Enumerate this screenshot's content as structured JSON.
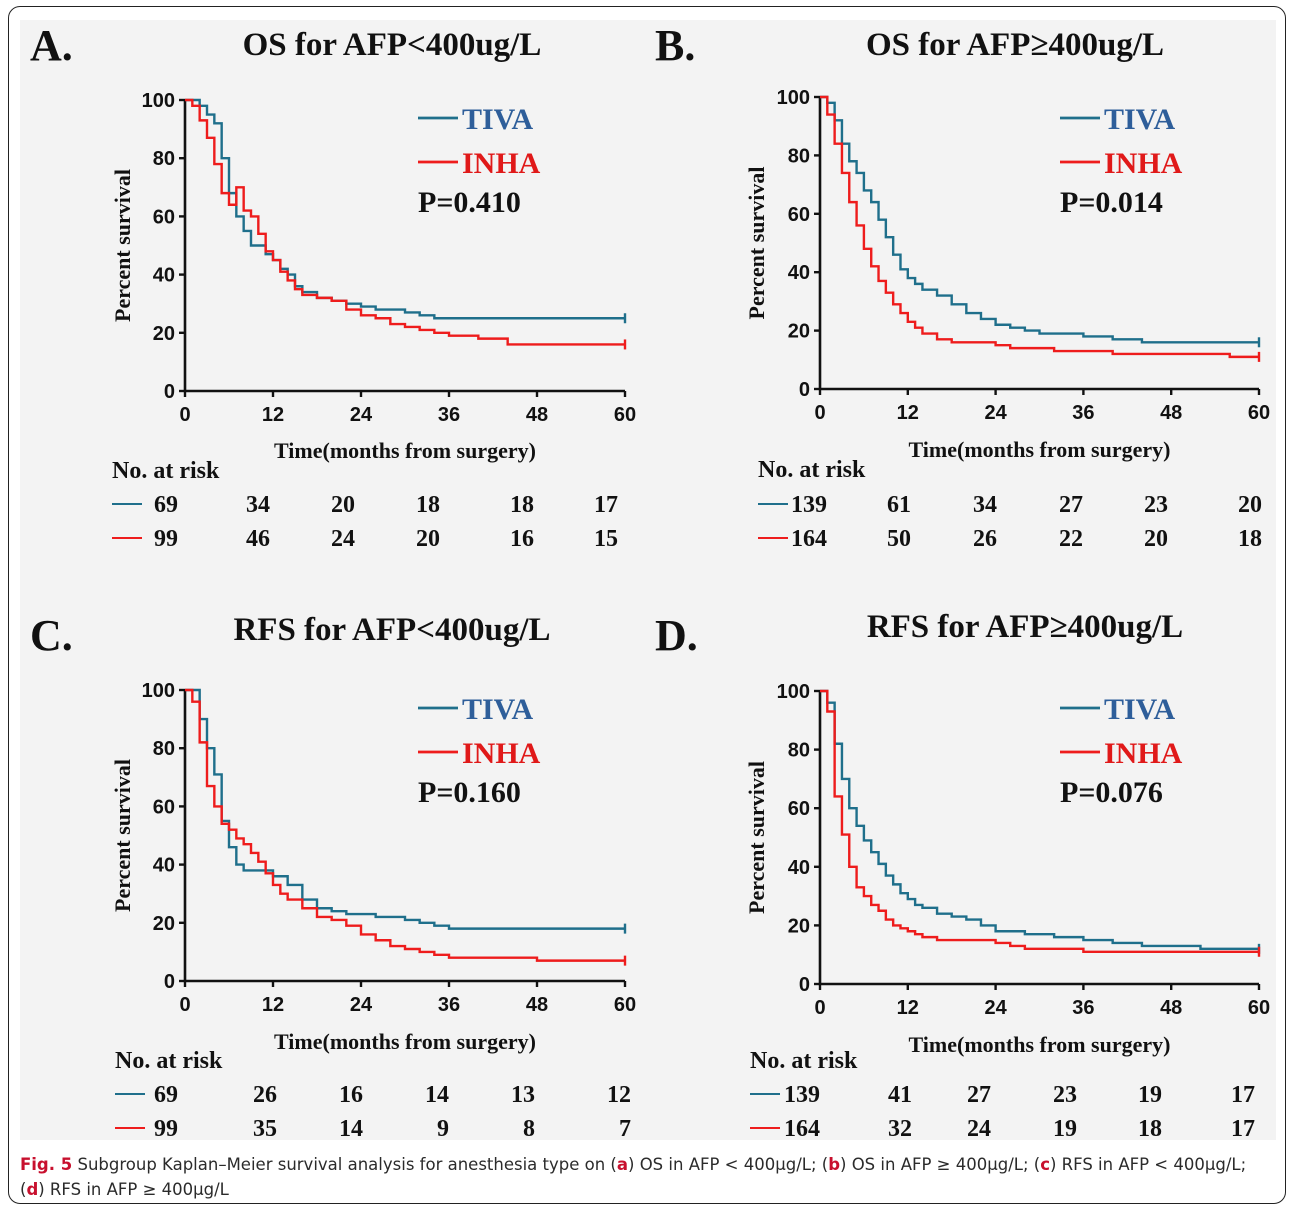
{
  "caption": {
    "label": "Fig. 5",
    "text": " Subgroup Kaplan–Meier survival analysis for anesthesia type on (",
    "parts": [
      {
        "ref": "a",
        "text": ") OS in AFP < 400μg/L; ("
      },
      {
        "ref": "b",
        "text": ") OS in AFP ≥ 400μg/L; ("
      },
      {
        "ref": "c",
        "text": ") RFS in AFP < 400μg/L;"
      },
      {
        "ref": "d",
        "text": ") RFS in AFP ≥ 400μg/L"
      }
    ]
  },
  "colors": {
    "TIVA": "#1f6f8b",
    "INHA": "#ee1c1c",
    "TIVA_text": "#2e5e9a",
    "INHA_text": "#e01919"
  },
  "chart_data": [
    {
      "panel": "A.",
      "type": "line",
      "step": true,
      "title": "OS for AFP<400ug/L",
      "xlabel": "Time(months from surgery)",
      "ylabel": "Percent survival",
      "xlim": [
        0,
        60
      ],
      "ylim": [
        0,
        100
      ],
      "xticks": [
        0,
        12,
        24,
        36,
        48,
        60
      ],
      "yticks": [
        0,
        20,
        40,
        60,
        80,
        100
      ],
      "legend": [
        "TIVA",
        "INHA"
      ],
      "p_value": "P=0.410",
      "series": [
        {
          "name": "TIVA",
          "x": [
            0,
            2,
            3,
            4,
            5,
            6,
            7,
            8,
            9,
            10,
            11,
            12,
            13,
            14,
            15,
            16,
            18,
            20,
            22,
            24,
            26,
            28,
            30,
            32,
            34,
            36,
            40,
            44,
            48,
            52,
            56,
            60
          ],
          "y": [
            100,
            98,
            95,
            92,
            80,
            68,
            60,
            55,
            50,
            50,
            47,
            45,
            42,
            40,
            36,
            34,
            32,
            31,
            30,
            29,
            28,
            28,
            27,
            26,
            25,
            25,
            25,
            25,
            25,
            25,
            25,
            25
          ]
        },
        {
          "name": "INHA",
          "x": [
            0,
            1,
            2,
            3,
            4,
            5,
            6,
            7,
            8,
            9,
            10,
            11,
            12,
            13,
            14,
            15,
            16,
            18,
            20,
            22,
            24,
            26,
            28,
            30,
            32,
            34,
            36,
            40,
            44,
            48,
            52,
            56,
            60
          ],
          "y": [
            100,
            98,
            93,
            87,
            78,
            68,
            64,
            70,
            62,
            60,
            54,
            48,
            45,
            41,
            38,
            35,
            33,
            32,
            31,
            28,
            26,
            25,
            23,
            22,
            21,
            20,
            19,
            18,
            16,
            16,
            16,
            16,
            16
          ]
        }
      ],
      "risk_table": {
        "title": "No. at risk",
        "TIVA": [
          69,
          34,
          20,
          18,
          18,
          17
        ],
        "INHA": [
          99,
          46,
          24,
          20,
          16,
          15
        ]
      }
    },
    {
      "panel": "B.",
      "type": "line",
      "step": true,
      "title": "OS for AFP≥400ug/L",
      "xlabel": "Time(months from surgery)",
      "ylabel": "Percent survival",
      "xlim": [
        0,
        60
      ],
      "ylim": [
        0,
        100
      ],
      "xticks": [
        0,
        12,
        24,
        36,
        48,
        60
      ],
      "yticks": [
        0,
        20,
        40,
        60,
        80,
        100
      ],
      "legend": [
        "TIVA",
        "INHA"
      ],
      "p_value": "P=0.014",
      "series": [
        {
          "name": "TIVA",
          "x": [
            0,
            1,
            2,
            3,
            4,
            5,
            6,
            7,
            8,
            9,
            10,
            11,
            12,
            13,
            14,
            16,
            18,
            20,
            22,
            24,
            26,
            28,
            30,
            32,
            36,
            40,
            44,
            48,
            52,
            56,
            60
          ],
          "y": [
            100,
            98,
            92,
            84,
            78,
            74,
            68,
            64,
            58,
            52,
            46,
            41,
            38,
            36,
            34,
            32,
            29,
            26,
            24,
            22,
            21,
            20,
            19,
            19,
            18,
            17,
            16,
            16,
            16,
            16,
            16
          ]
        },
        {
          "name": "INHA",
          "x": [
            0,
            1,
            2,
            3,
            4,
            5,
            6,
            7,
            8,
            9,
            10,
            11,
            12,
            13,
            14,
            16,
            18,
            20,
            22,
            24,
            26,
            28,
            30,
            32,
            36,
            40,
            44,
            48,
            52,
            56,
            60
          ],
          "y": [
            100,
            94,
            84,
            74,
            64,
            56,
            48,
            42,
            37,
            33,
            29,
            26,
            23,
            21,
            19,
            17,
            16,
            16,
            16,
            15,
            14,
            14,
            14,
            13,
            13,
            12,
            12,
            12,
            12,
            11,
            11
          ]
        }
      ],
      "risk_table": {
        "title": "No. at risk",
        "TIVA": [
          139,
          61,
          34,
          27,
          23,
          20
        ],
        "INHA": [
          164,
          50,
          26,
          22,
          20,
          18
        ]
      }
    },
    {
      "panel": "C.",
      "type": "line",
      "step": true,
      "title": "RFS for AFP<400ug/L",
      "xlabel": "Time(months from surgery)",
      "ylabel": "Percent survival",
      "xlim": [
        0,
        60
      ],
      "ylim": [
        0,
        100
      ],
      "xticks": [
        0,
        12,
        24,
        36,
        48,
        60
      ],
      "yticks": [
        0,
        20,
        40,
        60,
        80,
        100
      ],
      "legend": [
        "TIVA",
        "INHA"
      ],
      "p_value": "P=0.160",
      "series": [
        {
          "name": "TIVA",
          "x": [
            0,
            2,
            3,
            4,
            5,
            6,
            7,
            8,
            10,
            12,
            14,
            16,
            18,
            20,
            22,
            24,
            26,
            28,
            30,
            32,
            34,
            36,
            40,
            44,
            48,
            52,
            56,
            60
          ],
          "y": [
            100,
            90,
            80,
            71,
            55,
            46,
            40,
            38,
            38,
            36,
            33,
            28,
            25,
            24,
            23,
            23,
            22,
            22,
            21,
            20,
            19,
            18,
            18,
            18,
            18,
            18,
            18,
            18
          ]
        },
        {
          "name": "INHA",
          "x": [
            0,
            1,
            2,
            3,
            4,
            5,
            6,
            7,
            8,
            9,
            10,
            11,
            12,
            13,
            14,
            16,
            18,
            20,
            22,
            24,
            26,
            28,
            30,
            32,
            34,
            36,
            40,
            44,
            48,
            52,
            56,
            60
          ],
          "y": [
            100,
            96,
            82,
            67,
            60,
            54,
            52,
            49,
            47,
            44,
            41,
            37,
            33,
            30,
            28,
            25,
            22,
            21,
            19,
            16,
            14,
            12,
            11,
            10,
            9,
            8,
            8,
            8,
            7,
            7,
            7,
            7
          ]
        }
      ],
      "risk_table": {
        "title": "No. at risk",
        "TIVA": [
          69,
          26,
          16,
          14,
          13,
          12
        ],
        "INHA": [
          99,
          35,
          14,
          9,
          8,
          7
        ]
      }
    },
    {
      "panel": "D.",
      "type": "line",
      "step": true,
      "title": "RFS for AFP≥400ug/L",
      "xlabel": "Time(months from surgery)",
      "ylabel": "Percent survival",
      "xlim": [
        0,
        60
      ],
      "ylim": [
        0,
        100
      ],
      "xticks": [
        0,
        12,
        24,
        36,
        48,
        60
      ],
      "yticks": [
        0,
        20,
        40,
        60,
        80,
        100
      ],
      "legend": [
        "TIVA",
        "INHA"
      ],
      "p_value": "P=0.076",
      "series": [
        {
          "name": "TIVA",
          "x": [
            0,
            1,
            2,
            3,
            4,
            5,
            6,
            7,
            8,
            9,
            10,
            11,
            12,
            13,
            14,
            16,
            18,
            20,
            22,
            24,
            26,
            28,
            30,
            32,
            36,
            40,
            44,
            48,
            52,
            56,
            60
          ],
          "y": [
            100,
            96,
            82,
            70,
            60,
            54,
            49,
            45,
            41,
            37,
            34,
            31,
            29,
            27,
            26,
            24,
            23,
            22,
            20,
            18,
            18,
            17,
            17,
            16,
            15,
            14,
            13,
            13,
            12,
            12,
            12
          ]
        },
        {
          "name": "INHA",
          "x": [
            0,
            1,
            2,
            3,
            4,
            5,
            6,
            7,
            8,
            9,
            10,
            11,
            12,
            13,
            14,
            16,
            18,
            20,
            22,
            24,
            26,
            28,
            30,
            32,
            36,
            40,
            44,
            48,
            52,
            56,
            60
          ],
          "y": [
            100,
            93,
            64,
            51,
            40,
            33,
            30,
            27,
            25,
            22,
            20,
            19,
            18,
            17,
            16,
            15,
            15,
            15,
            15,
            14,
            13,
            12,
            12,
            12,
            11,
            11,
            11,
            11,
            11,
            11,
            11
          ]
        }
      ],
      "risk_table": {
        "title": "No. at risk",
        "TIVA": [
          139,
          41,
          27,
          23,
          19,
          17
        ],
        "INHA": [
          164,
          32,
          24,
          19,
          18,
          17
        ]
      }
    }
  ]
}
